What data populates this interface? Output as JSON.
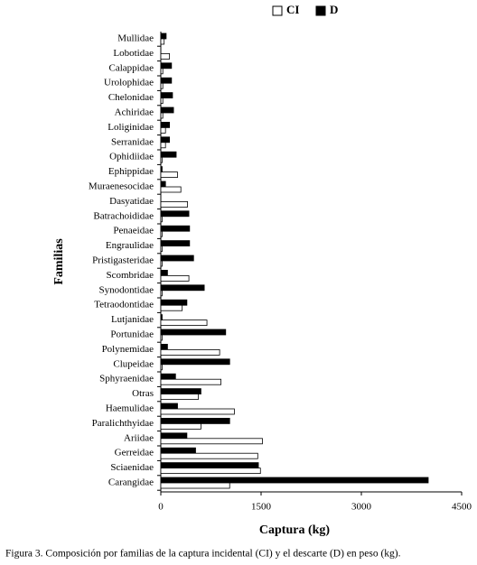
{
  "chart_data": {
    "type": "hbar",
    "x_label": "Captura (kg)",
    "y_label": "Familias",
    "caption": "Figura 3. Composición por familias de la captura incidental (CI) y el descarte (D) en peso (kg).",
    "legend": "top-right",
    "categories": [
      "Mullidae",
      "Lobotidae",
      "Calappidae",
      "Urolophidae",
      "Chelonidae",
      "Achiridae",
      "Loliginidae",
      "Serranidae",
      "Ophidiidae",
      "Ephippidae",
      "Muraenesocidae",
      "Dasyatidae",
      "Batrachoididae",
      "Penaeidae",
      "Engraulidae",
      "Pristigasteridae",
      "Scombridae",
      "Synodontidae",
      "Tetraodontidae",
      "Lutjanidae",
      "Portunidae",
      "Polynemidae",
      "Clupeidae",
      "Sphyraenidae",
      "Otras",
      "Haemulidae",
      "Paralichthyidae",
      "Ariidae",
      "Gerreidae",
      "Sciaenidae",
      "Carangidae"
    ],
    "series": [
      {
        "name": "CI",
        "color": "#ffffff",
        "values": [
          50,
          130,
          30,
          30,
          30,
          30,
          70,
          70,
          20,
          250,
          300,
          400,
          20,
          20,
          20,
          20,
          420,
          20,
          320,
          690,
          20,
          880,
          20,
          900,
          560,
          1100,
          600,
          1520,
          1450,
          1490,
          1030
        ]
      },
      {
        "name": "D",
        "color": "#000000",
        "values": [
          80,
          0,
          160,
          160,
          175,
          190,
          130,
          130,
          230,
          20,
          70,
          0,
          420,
          430,
          430,
          490,
          100,
          650,
          390,
          20,
          970,
          100,
          1030,
          220,
          600,
          250,
          1030,
          390,
          520,
          1460,
          4000
        ]
      }
    ],
    "xlim": [
      0,
      4500
    ],
    "xticks": [
      0,
      1500,
      3000,
      4500
    ]
  }
}
